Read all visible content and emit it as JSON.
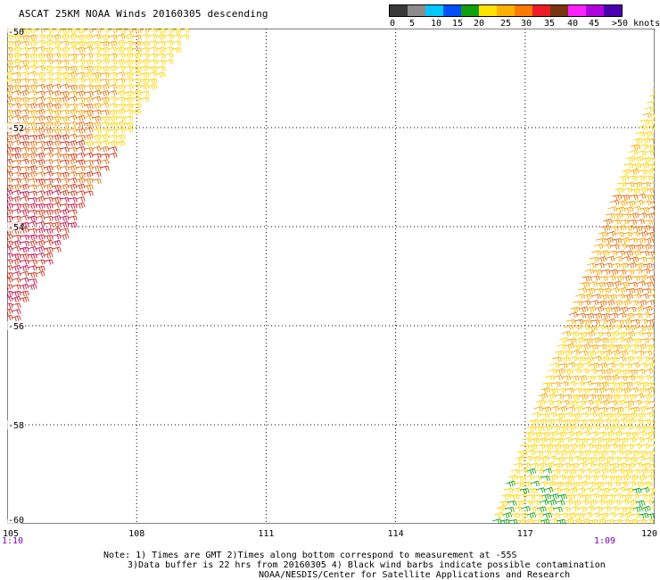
{
  "title": "ASCAT 25KM NOAA Winds 20160305 descending",
  "legend": {
    "colors": [
      "#3a3a3a",
      "#8c8c8c",
      "#00c8ff",
      "#0050ff",
      "#10a010",
      "#ffe200",
      "#ffb000",
      "#ff7a00",
      "#ee1c24",
      "#7a3410",
      "#ff20ff",
      "#b000e0",
      "#4a00b0"
    ],
    "labels": [
      {
        "text": "0"
      },
      {
        "text": "5"
      },
      {
        "text": "10"
      },
      {
        "text": "15"
      },
      {
        "text": "20"
      },
      {
        "text": "25"
      },
      {
        "text": "30"
      },
      {
        "text": "35"
      },
      {
        "text": "40"
      },
      {
        "text": "45"
      },
      {
        "text": ">50 knots"
      }
    ]
  },
  "map": {
    "lon_range": [
      105,
      120
    ],
    "lat_range": [
      -60,
      -50
    ],
    "grid_lines": "dotted",
    "x_ticks": [
      "105",
      "108",
      "111",
      "114",
      "117",
      "120"
    ],
    "y_ticks": [
      "-50",
      "-52",
      "-54",
      "-56",
      "-58",
      "-60"
    ],
    "time_labels": {
      "left": "1:10",
      "right": "1:09"
    },
    "barb_colors": [
      "#ffd400",
      "#f6a800",
      "#e07010",
      "#c83018",
      "#c01048",
      "#10a010"
    ]
  },
  "note": {
    "line1": "Note: 1) Times are GMT 2)Times along bottom correspond to measurement at -55S",
    "line2": "3)Data buffer is 22 hrs from 20160305 4) Black wind barbs indicate possible contamination",
    "line3": "NOAA/NESDIS/Center for Satellite Applications and Research"
  }
}
